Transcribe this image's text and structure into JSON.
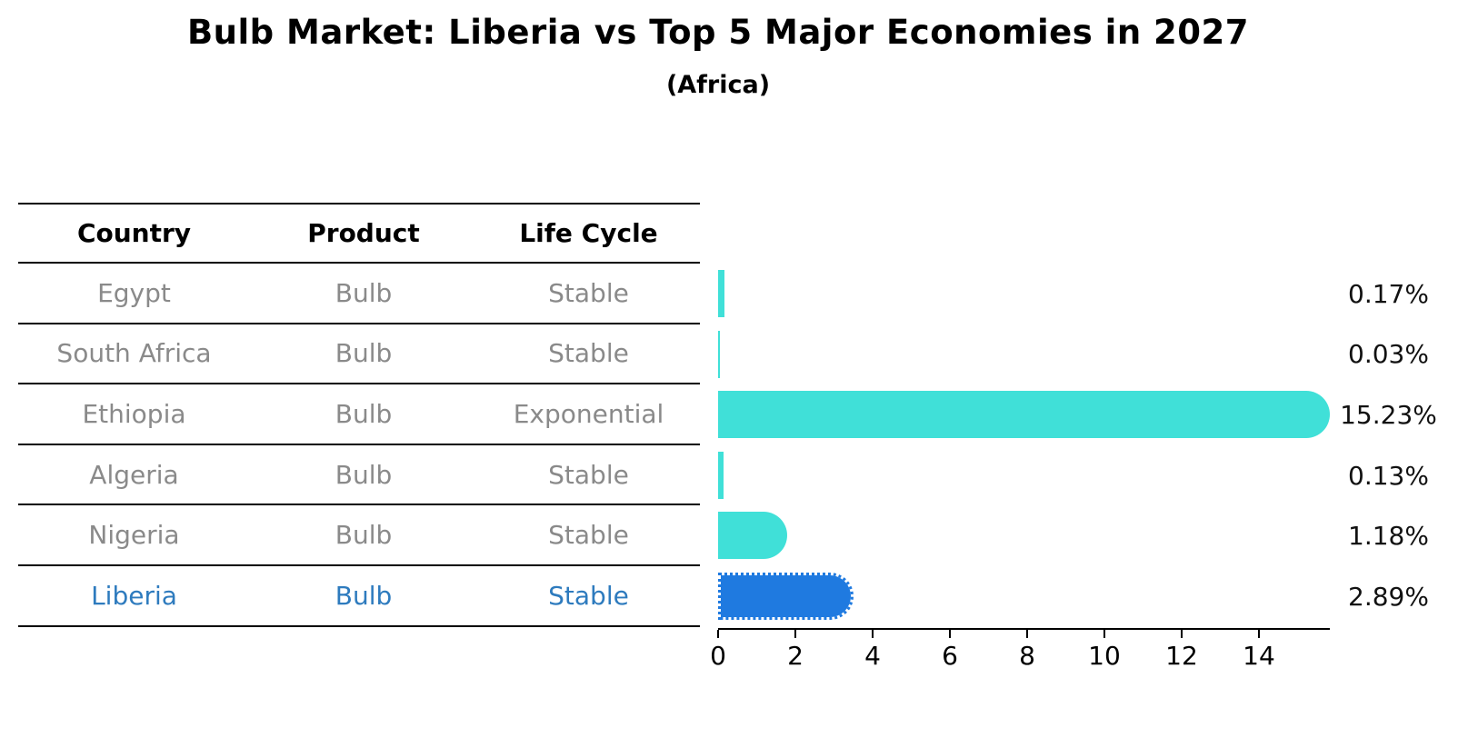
{
  "header": {
    "title": "Bulb Market: Liberia vs Top 5 Major Economies in 2027",
    "subtitle": "(Africa)"
  },
  "table": {
    "columns": [
      "Country",
      "Product",
      "Life Cycle"
    ],
    "rows": [
      {
        "country": "Egypt",
        "product": "Bulb",
        "life_cycle": "Stable",
        "highlight": false
      },
      {
        "country": "South Africa",
        "product": "Bulb",
        "life_cycle": "Stable",
        "highlight": false
      },
      {
        "country": "Ethiopia",
        "product": "Bulb",
        "life_cycle": "Exponential",
        "highlight": false
      },
      {
        "country": "Algeria",
        "product": "Bulb",
        "life_cycle": "Stable",
        "highlight": false
      },
      {
        "country": "Nigeria",
        "product": "Bulb",
        "life_cycle": "Stable",
        "highlight": false
      },
      {
        "country": "Liberia",
        "product": "Bulb",
        "life_cycle": "Stable",
        "highlight": true
      }
    ]
  },
  "chart_data": {
    "type": "bar",
    "orientation": "horizontal",
    "title": "Bulb Market: Liberia vs Top 5 Major Economies in 2027",
    "subtitle": "(Africa)",
    "categories": [
      "Egypt",
      "South Africa",
      "Ethiopia",
      "Algeria",
      "Nigeria",
      "Liberia"
    ],
    "values": [
      0.17,
      0.03,
      15.23,
      0.13,
      1.18,
      2.89
    ],
    "value_labels": [
      "0.17%",
      "0.03%",
      "15.23%",
      "0.13%",
      "1.18%",
      "2.89%"
    ],
    "unit": "percent",
    "xticks": [
      0,
      2,
      4,
      6,
      8,
      10,
      12,
      14
    ],
    "xlim": [
      0,
      15.8
    ],
    "grid": false,
    "legend": "none",
    "highlight_index": 5,
    "colors": {
      "bar": "#40e0d8",
      "highlight_bar": "#1f7ae0",
      "highlight_text": "#2e7bbe",
      "row_text": "#8a8a8a",
      "axis": "#000000"
    }
  }
}
